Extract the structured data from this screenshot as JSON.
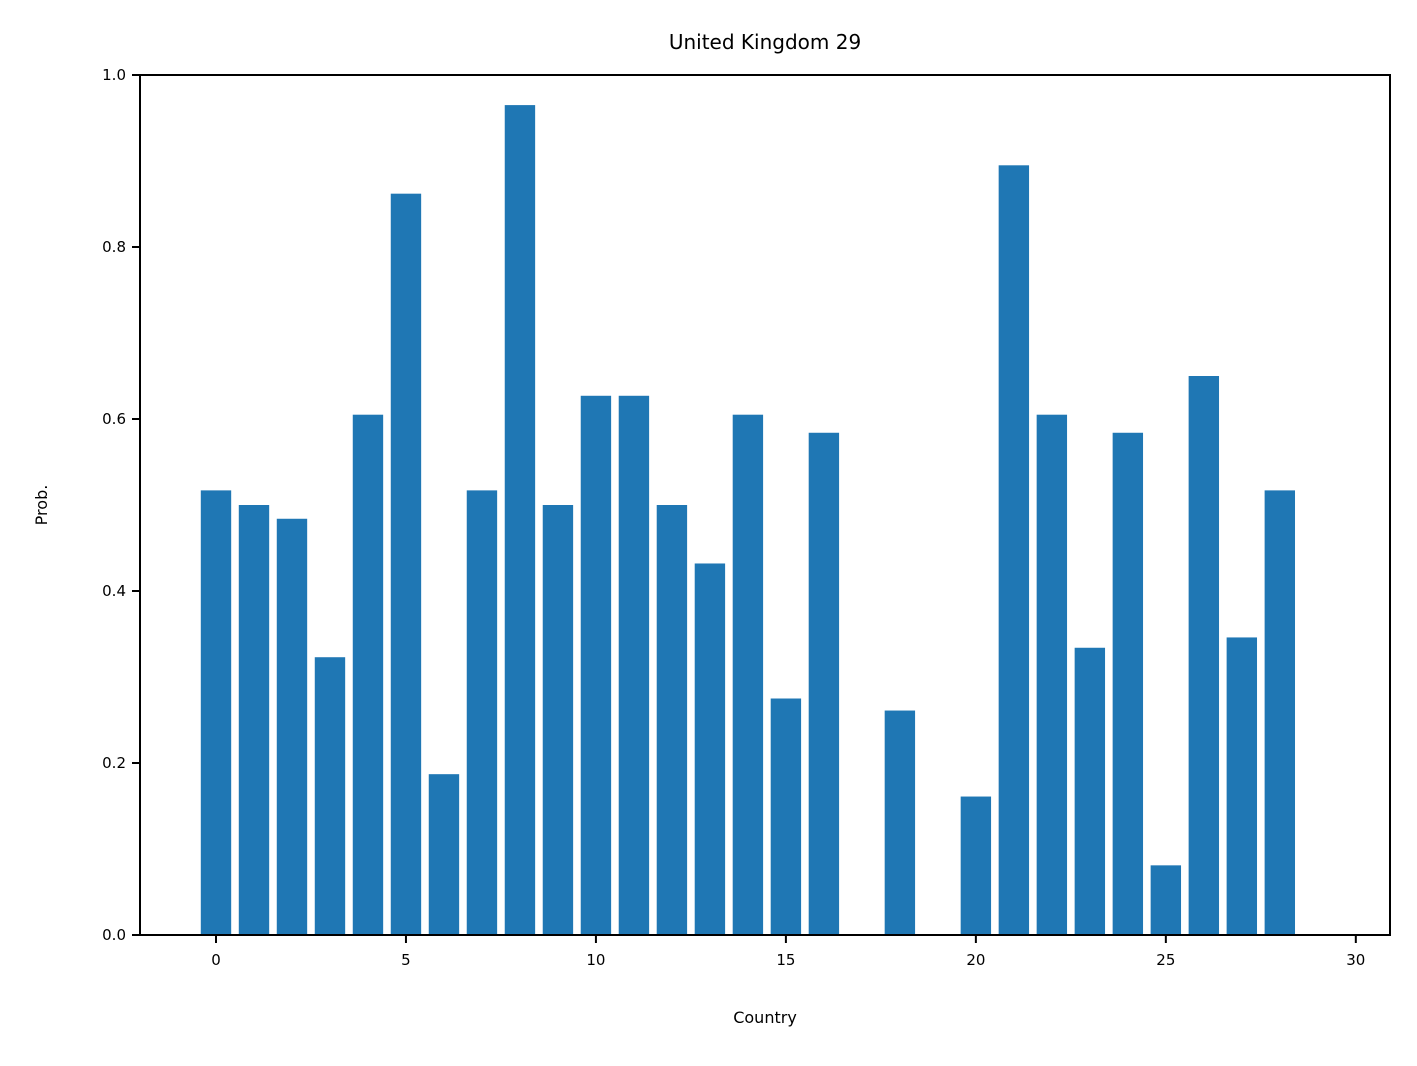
{
  "chart_data": {
    "type": "bar",
    "title": "United Kingdom 29",
    "xlabel": "Country",
    "ylabel": "Prob.",
    "bar_color": "#1f77b4",
    "xlim": [
      -2,
      30.9
    ],
    "ylim": [
      0,
      1
    ],
    "grid": false,
    "legend": "none",
    "xticks": [
      0,
      5,
      10,
      15,
      20,
      25,
      30
    ],
    "xtick_labels": [
      "0",
      "5",
      "10",
      "15",
      "20",
      "25",
      "30"
    ],
    "yticks": [
      0,
      0.2,
      0.4,
      0.6,
      0.8,
      1.0
    ],
    "ytick_labels": [
      "0.0",
      "0.2",
      "0.4",
      "0.6",
      "0.8",
      "1.0"
    ],
    "x": [
      0,
      1,
      2,
      3,
      4,
      5,
      6,
      7,
      8,
      9,
      10,
      11,
      12,
      13,
      14,
      15,
      16,
      17,
      18,
      19,
      20,
      21,
      22,
      23,
      24,
      25,
      26,
      27,
      28
    ],
    "values": [
      0.517,
      0.5,
      0.484,
      0.323,
      0.605,
      0.862,
      0.187,
      0.517,
      0.965,
      0.5,
      0.627,
      0.627,
      0.5,
      0.432,
      0.605,
      0.275,
      0.584,
      0.0,
      0.261,
      0.0,
      0.161,
      0.895,
      0.605,
      0.334,
      0.584,
      0.081,
      0.65,
      0.346,
      0.517
    ]
  }
}
